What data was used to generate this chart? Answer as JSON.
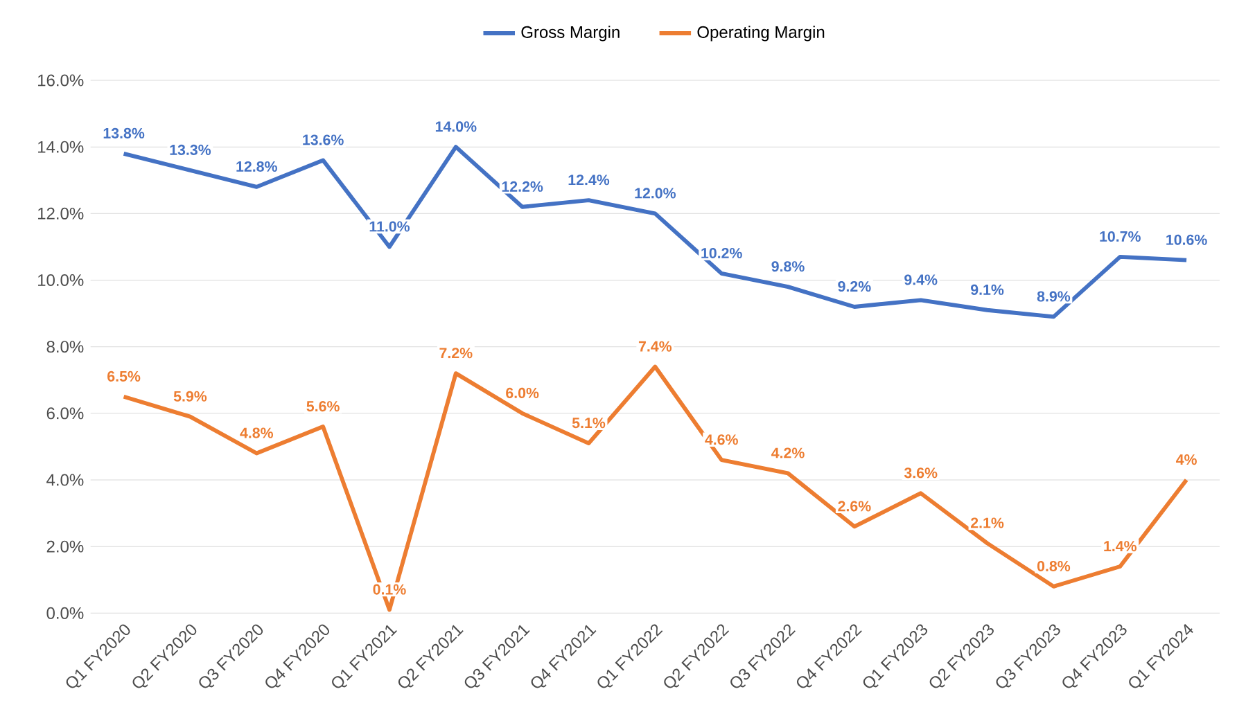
{
  "chart_data": {
    "type": "line",
    "categories": [
      "Q1 FY2020",
      "Q2 FY2020",
      "Q3 FY2020",
      "Q4 FY2020",
      "Q1 FY2021",
      "Q2 FY2021",
      "Q3 FY2021",
      "Q4 FY2021",
      "Q1 FY2022",
      "Q2 FY2022",
      "Q3 FY2022",
      "Q4 FY2022",
      "Q1 FY2023",
      "Q2 FY2023",
      "Q3 FY2023",
      "Q4 FY2023",
      "Q1 FY2024"
    ],
    "series": [
      {
        "name": "Gross Margin",
        "color": "#4472c4",
        "values": [
          13.8,
          13.3,
          12.8,
          13.6,
          11.0,
          14.0,
          12.2,
          12.4,
          12.0,
          10.2,
          9.8,
          9.2,
          9.4,
          9.1,
          8.9,
          10.7,
          10.6
        ],
        "value_labels": [
          "13.8%",
          "13.3%",
          "12.8%",
          "13.6%",
          "11.0%",
          "14.0%",
          "12.2%",
          "12.4%",
          "12.0%",
          "10.2%",
          "9.8%",
          "9.2%",
          "9.4%",
          "9.1%",
          "8.9%",
          "10.7%",
          "10.6%"
        ]
      },
      {
        "name": "Operating Margin",
        "color": "#ed7d31",
        "values": [
          6.5,
          5.9,
          4.8,
          5.6,
          0.1,
          7.2,
          6.0,
          5.1,
          7.4,
          4.6,
          4.2,
          2.6,
          3.6,
          2.1,
          0.8,
          1.4,
          4
        ],
        "value_labels": [
          "6.5%",
          "5.9%",
          "4.8%",
          "5.6%",
          "0.1%",
          "7.2%",
          "6.0%",
          "5.1%",
          "7.4%",
          "4.6%",
          "4.2%",
          "2.6%",
          "3.6%",
          "2.1%",
          "0.8%",
          "1.4%",
          "4%"
        ]
      }
    ],
    "ylim": [
      0,
      16
    ],
    "yticks": [
      {
        "value": 0,
        "label": "0.0%"
      },
      {
        "value": 2,
        "label": "2.0%"
      },
      {
        "value": 4,
        "label": "4.0%"
      },
      {
        "value": 6,
        "label": "6.0%"
      },
      {
        "value": 8,
        "label": "8.0%"
      },
      {
        "value": 10,
        "label": "10.0%"
      },
      {
        "value": 12,
        "label": "12.0%"
      },
      {
        "value": 14,
        "label": "14.0%"
      },
      {
        "value": 16,
        "label": "16.0%"
      }
    ],
    "grid": "y",
    "legend": "top",
    "marker": "none",
    "line_style": "solid"
  }
}
